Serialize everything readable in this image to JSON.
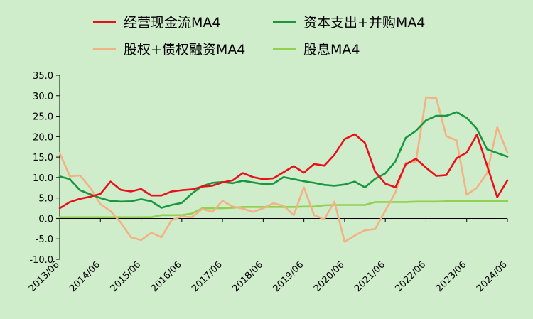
{
  "chart_data": {
    "type": "line",
    "title": "",
    "xlabel": "",
    "ylabel": "",
    "ylim": [
      -10,
      35
    ],
    "yticks": [
      "35.0",
      "30.0",
      "25.0",
      "20.0",
      "15.0",
      "10.0",
      "5.0",
      "0.0",
      "-5.0",
      "-10.0"
    ],
    "ytick_values": [
      35,
      30,
      25,
      20,
      15,
      10,
      5,
      0,
      -5,
      -10
    ],
    "xtick_labels": [
      "2013/06",
      "2014/06",
      "2015/06",
      "2016/06",
      "2017/06",
      "2018/06",
      "2019/06",
      "2020/06",
      "2021/06",
      "2022/06",
      "2023/06",
      "2024/06"
    ],
    "x": [
      "2013/06",
      "2013/09",
      "2013/12",
      "2014/03",
      "2014/06",
      "2014/09",
      "2014/12",
      "2015/03",
      "2015/06",
      "2015/09",
      "2015/12",
      "2016/03",
      "2016/06",
      "2016/09",
      "2016/12",
      "2017/03",
      "2017/06",
      "2017/09",
      "2017/12",
      "2018/03",
      "2018/06",
      "2018/09",
      "2018/12",
      "2019/03",
      "2019/06",
      "2019/09",
      "2019/12",
      "2020/03",
      "2020/06",
      "2020/09",
      "2020/12",
      "2021/03",
      "2021/06",
      "2021/09",
      "2021/12",
      "2022/03",
      "2022/06",
      "2022/09",
      "2022/12",
      "2023/03",
      "2023/06",
      "2023/09",
      "2023/12",
      "2024/03",
      "2024/06"
    ],
    "grid": false,
    "legend_position": "top",
    "series": [
      {
        "name": "经营现金流MA4",
        "color": "#e8111a",
        "values": [
          2.5,
          4.0,
          4.8,
          5.3,
          6.0,
          9.0,
          7.0,
          6.6,
          7.2,
          5.6,
          5.6,
          6.6,
          6.9,
          7.1,
          7.8,
          8.0,
          8.8,
          9.3,
          11.1,
          10.1,
          9.6,
          9.8,
          11.3,
          12.8,
          11.2,
          13.3,
          12.9,
          15.6,
          19.4,
          20.6,
          18.5,
          11.4,
          8.5,
          7.6,
          13.2,
          14.6,
          12.4,
          10.4,
          10.6,
          14.7,
          16.1,
          20.5,
          12.9,
          5.2,
          9.3
        ]
      },
      {
        "name": "资本支出+并购MA4",
        "color": "#1a9640",
        "values": [
          10.3,
          9.6,
          6.9,
          5.9,
          5.0,
          4.3,
          4.1,
          4.2,
          4.7,
          4.2,
          2.6,
          3.3,
          3.8,
          6.1,
          7.9,
          8.7,
          8.9,
          8.6,
          9.2,
          8.8,
          8.4,
          8.5,
          10.1,
          9.6,
          9.1,
          8.7,
          8.2,
          8.0,
          8.3,
          9.0,
          7.6,
          9.7,
          11.0,
          14.0,
          19.7,
          21.4,
          24.0,
          25.1,
          25.1,
          26.0,
          24.6,
          21.9,
          16.9,
          16.0,
          15.1
        ]
      },
      {
        "name": "股权+债权融资MA4",
        "color": "#f4b183",
        "values": [
          16.0,
          10.3,
          10.5,
          7.5,
          3.5,
          1.8,
          -1.0,
          -4.6,
          -5.3,
          -3.5,
          -4.6,
          -0.4,
          0.5,
          0.3,
          2.3,
          1.6,
          4.3,
          2.9,
          2.4,
          1.6,
          2.5,
          3.7,
          3.1,
          0.8,
          7.6,
          0.8,
          -0.2,
          4.1,
          -5.7,
          -4.2,
          -2.9,
          -2.6,
          1.9,
          6.4,
          13.6,
          13.8,
          29.6,
          29.4,
          20.1,
          19.1,
          5.8,
          7.5,
          11.1,
          22.3,
          16.1
        ]
      },
      {
        "name": "股息MA4",
        "color": "#92d050",
        "values": [
          0.3,
          0.3,
          0.3,
          0.3,
          0.3,
          0.3,
          0.3,
          0.3,
          0.3,
          0.3,
          0.8,
          0.8,
          0.8,
          1.2,
          2.5,
          2.5,
          2.5,
          2.6,
          2.8,
          2.8,
          2.8,
          2.8,
          2.8,
          2.8,
          2.9,
          2.9,
          3.2,
          3.3,
          3.3,
          3.3,
          3.3,
          4.0,
          4.0,
          4.0,
          4.0,
          4.1,
          4.1,
          4.1,
          4.2,
          4.2,
          4.3,
          4.3,
          4.2,
          4.2,
          4.2
        ]
      }
    ]
  }
}
